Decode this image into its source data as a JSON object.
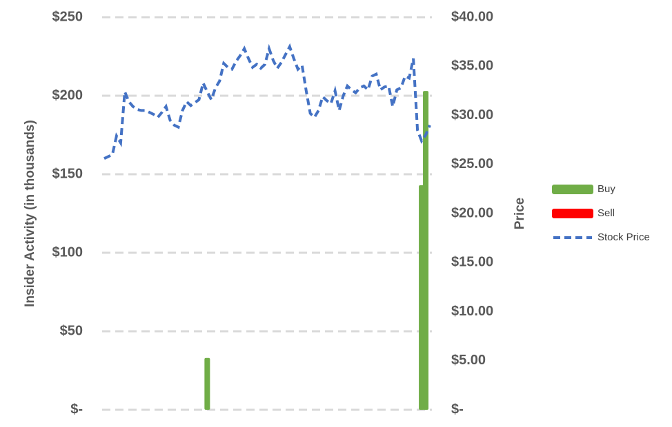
{
  "chart_data": {
    "type": "combo",
    "y_label": "Insider Activity (in thousands)",
    "y2_label": "Price",
    "categories": [
      null,
      null,
      null,
      null,
      null,
      null,
      null,
      null,
      null,
      null,
      null,
      null,
      null,
      null,
      null,
      null,
      null,
      null,
      null,
      null,
      null,
      null,
      null,
      null,
      null,
      null,
      null,
      null,
      null,
      null,
      null,
      null,
      null,
      null,
      null,
      null,
      null,
      null,
      null,
      null,
      null,
      null,
      null,
      null,
      null,
      null,
      null,
      null,
      null,
      null,
      null,
      null,
      null,
      null,
      null,
      null,
      null,
      null,
      null,
      null,
      null,
      null,
      null,
      null,
      null,
      null,
      null,
      null,
      null,
      null,
      null,
      null,
      null,
      null,
      null,
      null,
      null,
      null,
      null,
      null
    ],
    "series": [
      {
        "name": "Buy",
        "type": "bar",
        "color": "#70ad47",
        "axis": "y",
        "values": [
          null,
          null,
          null,
          null,
          null,
          null,
          null,
          null,
          null,
          null,
          null,
          null,
          null,
          null,
          null,
          null,
          null,
          null,
          null,
          null,
          null,
          null,
          null,
          null,
          null,
          33,
          null,
          null,
          null,
          null,
          null,
          null,
          null,
          null,
          null,
          null,
          null,
          null,
          null,
          null,
          null,
          null,
          null,
          null,
          null,
          null,
          null,
          null,
          null,
          null,
          null,
          null,
          null,
          null,
          null,
          null,
          null,
          null,
          null,
          null,
          null,
          null,
          null,
          null,
          null,
          null,
          null,
          null,
          null,
          null,
          null,
          null,
          null,
          null,
          null,
          null,
          null,
          143,
          203,
          null
        ]
      },
      {
        "name": "Sell",
        "type": "bar",
        "color": "#ff0000",
        "axis": "y",
        "values": [
          null,
          null,
          null,
          null,
          null,
          null,
          null,
          null,
          null,
          null,
          null,
          null,
          null,
          null,
          null,
          null,
          null,
          null,
          null,
          null,
          null,
          null,
          null,
          null,
          null,
          null,
          null,
          null,
          null,
          null,
          null,
          null,
          null,
          null,
          null,
          null,
          null,
          null,
          null,
          null,
          null,
          null,
          null,
          null,
          null,
          null,
          null,
          null,
          null,
          null,
          null,
          null,
          null,
          null,
          null,
          null,
          null,
          null,
          null,
          null,
          null,
          null,
          null,
          null,
          null,
          null,
          null,
          null,
          null,
          null,
          null,
          null,
          null,
          null,
          null,
          null,
          null,
          null,
          null,
          null
        ]
      },
      {
        "name": "Stock Price",
        "type": "line",
        "color": "#4472c4",
        "axis": "y2",
        "values": [
          25.6,
          25.8,
          26.0,
          27.9,
          27.2,
          32.4,
          31.4,
          30.9,
          30.6,
          30.5,
          30.5,
          30.3,
          30.1,
          29.8,
          30.3,
          30.9,
          29.5,
          29.0,
          28.8,
          30.5,
          31.4,
          31.0,
          31.3,
          31.6,
          33.3,
          32.4,
          31.6,
          32.8,
          33.5,
          35.3,
          34.9,
          34.7,
          35.5,
          36.1,
          36.8,
          35.8,
          34.9,
          35.2,
          34.8,
          35.2,
          36.8,
          35.6,
          34.8,
          35.4,
          36.2,
          37.0,
          35.8,
          34.7,
          35.1,
          32.5,
          30.2,
          29.8,
          30.5,
          31.9,
          31.5,
          31.2,
          32.5,
          30.5,
          32.0,
          33.0,
          32.6,
          32.3,
          32.8,
          33.0,
          32.6,
          34.0,
          34.2,
          32.6,
          32.9,
          33.0,
          30.9,
          32.6,
          32.8,
          34.0,
          33.8,
          35.8,
          28.5,
          27.4,
          28.0,
          29.0
        ]
      }
    ],
    "ylim": [
      0,
      250
    ],
    "yticks": [
      {
        "value": 0,
        "label": "$-"
      },
      {
        "value": 50,
        "label": "$50"
      },
      {
        "value": 100,
        "label": "$100"
      },
      {
        "value": 150,
        "label": "$150"
      },
      {
        "value": 200,
        "label": "$200"
      },
      {
        "value": 250,
        "label": "$250"
      }
    ],
    "y2lim": [
      0,
      40
    ],
    "y2ticks": [
      {
        "value": 0,
        "label": "$-"
      },
      {
        "value": 5,
        "label": "$5.00"
      },
      {
        "value": 10,
        "label": "$10.00"
      },
      {
        "value": 15,
        "label": "$15.00"
      },
      {
        "value": 20,
        "label": "$20.00"
      },
      {
        "value": 25,
        "label": "$25.00"
      },
      {
        "value": 30,
        "label": "$30.00"
      },
      {
        "value": 35,
        "label": "$35.00"
      },
      {
        "value": 40,
        "label": "$40.00"
      }
    ],
    "grid": true,
    "legend": "right"
  }
}
